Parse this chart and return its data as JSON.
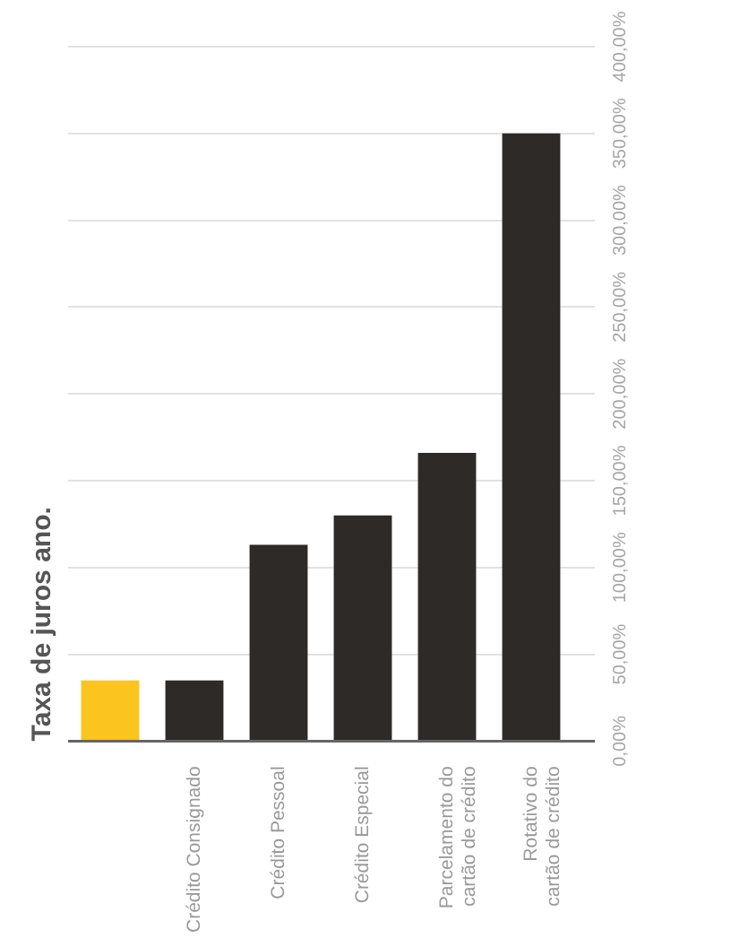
{
  "chart_data": {
    "type": "bar",
    "title": "Taxa de juros ano.",
    "categories": [
      null,
      "Crédito Consignado",
      "Crédito Pessoal",
      "Crédito Especial",
      "Parcelamento do\ncartão de crédito",
      "Rotativo do\ncartão de crédito"
    ],
    "values": [
      35,
      35,
      113,
      130,
      166,
      350
    ],
    "colors": [
      "#fbc41f",
      "#2d2a27",
      "#2d2a27",
      "#2d2a27",
      "#2d2a27",
      "#2d2a27"
    ],
    "ylim": [
      0,
      400
    ],
    "yticks": [
      {
        "value": 0,
        "label": "0,00%"
      },
      {
        "value": 50,
        "label": "50,00%"
      },
      {
        "value": 100,
        "label": "100,00%"
      },
      {
        "value": 150,
        "label": "150,00%"
      },
      {
        "value": 200,
        "label": "200,00%"
      },
      {
        "value": 250,
        "label": "250,00%"
      },
      {
        "value": 300,
        "label": "300,00%"
      },
      {
        "value": 350,
        "label": "350,00%"
      },
      {
        "value": 400,
        "label": "400,00%"
      }
    ],
    "grid": "y"
  }
}
